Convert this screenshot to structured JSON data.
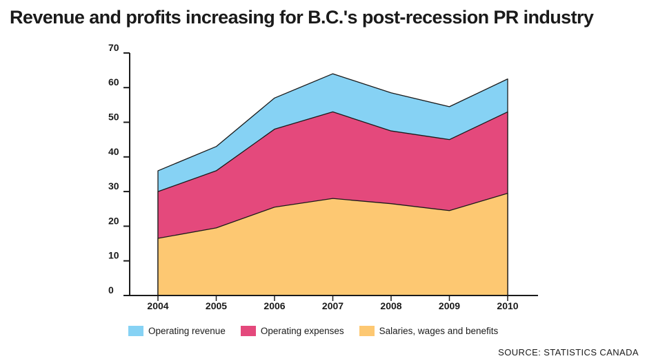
{
  "chart_data": {
    "type": "area",
    "title": "Revenue and profits increasing for B.C.'s post-recession PR industry",
    "categories": [
      "2004",
      "2005",
      "2006",
      "2007",
      "2008",
      "2009",
      "2010"
    ],
    "ylim": [
      0,
      70
    ],
    "yticks": [
      0,
      10,
      20,
      30,
      40,
      50,
      60,
      70
    ],
    "series": [
      {
        "name": "Salaries, wages and benefits",
        "values": [
          16.5,
          19.5,
          25.5,
          28,
          26.5,
          24.5,
          29.5
        ],
        "color": "#fdc872"
      },
      {
        "name": "Operating expenses",
        "values": [
          30,
          36,
          48,
          53,
          47.5,
          45,
          53
        ],
        "color": "#e4497c"
      },
      {
        "name": "Operating revenue",
        "values": [
          36,
          43,
          57,
          64,
          58.5,
          54.5,
          62.5
        ],
        "color": "#86d2f4"
      }
    ],
    "legend_order": [
      "Operating revenue",
      "Operating expenses",
      "Salaries, wages and benefits"
    ],
    "legend_position": "bottom",
    "grid": false,
    "source": "SOURCE: STATISTICS CANADA"
  }
}
